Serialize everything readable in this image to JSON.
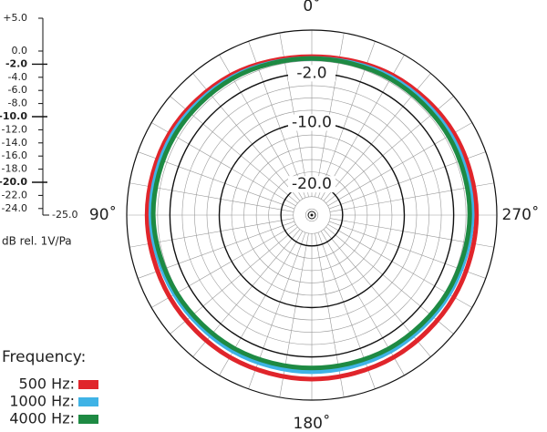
{
  "chart_data": {
    "type": "polar",
    "thetaticks": [
      {
        "value": 0,
        "label": "0˚"
      },
      {
        "value": 90,
        "label": "90˚"
      },
      {
        "value": 180,
        "label": "180˚"
      },
      {
        "value": 270,
        "label": "270˚"
      }
    ],
    "theta": [
      0,
      30,
      60,
      90,
      120,
      150,
      180,
      210,
      240,
      270,
      300,
      330
    ],
    "rlim": [
      -25,
      5
    ],
    "yticks": [
      {
        "value": 5,
        "label": "+5.0"
      },
      {
        "value": 0,
        "label": "0.0"
      },
      {
        "value": -2,
        "label": "-2.0"
      },
      {
        "value": -4,
        "label": "-4.0"
      },
      {
        "value": -6,
        "label": "-6.0"
      },
      {
        "value": -8,
        "label": "-8.0"
      },
      {
        "value": -10,
        "label": "-10.0"
      },
      {
        "value": -12,
        "label": "-12.0"
      },
      {
        "value": -14,
        "label": "-14.0"
      },
      {
        "value": -16,
        "label": "-16.0"
      },
      {
        "value": -18,
        "label": "-18.0"
      },
      {
        "value": -20,
        "label": "-20.0"
      },
      {
        "value": -22,
        "label": "-22.0"
      },
      {
        "value": -24,
        "label": "-24.0"
      },
      {
        "value": -25,
        "label": "-25.0"
      }
    ],
    "rings": [
      {
        "value": -2,
        "label": "-2.0"
      },
      {
        "value": -10,
        "label": "-10.0"
      },
      {
        "value": -20,
        "label": "-20.0"
      }
    ],
    "axis_label": "dB rel. 1V/Pa",
    "legend_title": "Frequency:",
    "series": [
      {
        "name": "500 Hz:",
        "color": "#e0252b",
        "values": [
          0.7,
          1.2,
          1.6,
          1.7,
          1.6,
          1.6,
          1.6,
          1.6,
          1.6,
          1.7,
          1.6,
          1.2
        ]
      },
      {
        "name": "1000 Hz:",
        "color": "#3fb3e6",
        "values": [
          0.4,
          0.8,
          1.1,
          1.1,
          0.7,
          0.5,
          0.4,
          0.5,
          0.7,
          1.0,
          1.0,
          0.8
        ]
      },
      {
        "name": "4000 Hz:",
        "color": "#1e8a43",
        "values": [
          0.4,
          0.6,
          0.7,
          0.7,
          0.3,
          0.0,
          -0.2,
          0.0,
          0.3,
          0.6,
          0.6,
          0.5
        ]
      }
    ]
  }
}
